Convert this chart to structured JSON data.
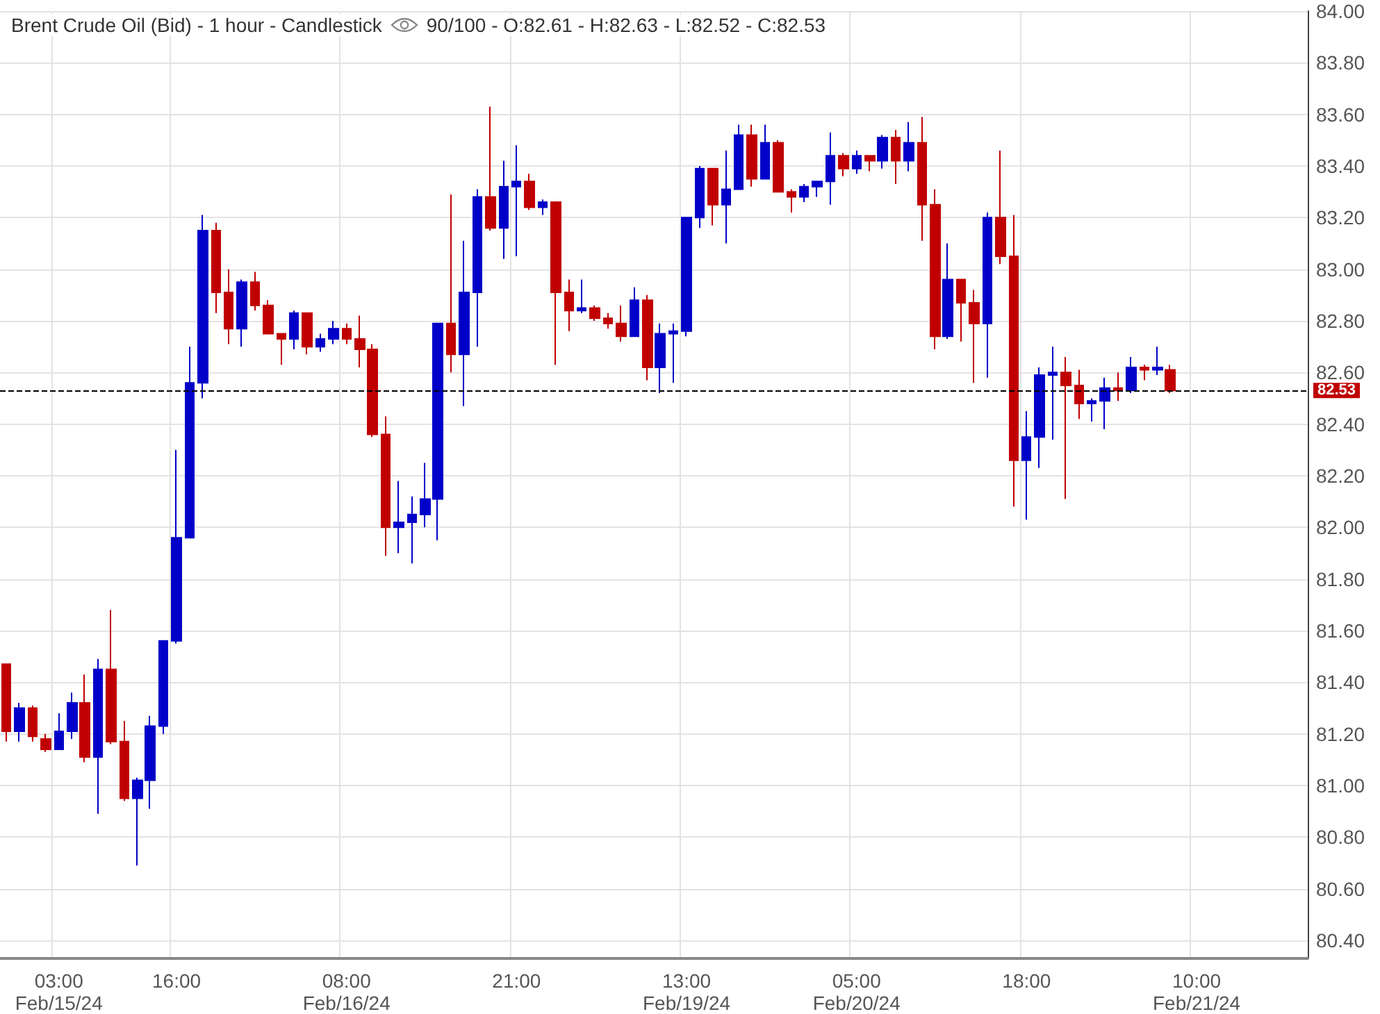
{
  "chart_data": {
    "type": "candlestick",
    "title": "Brent Crude Oil (Bid) - 1 hour - Candlestick",
    "annotations": [
      "90/100 - O:82.61 - H:82.63 - L:82.52 - C:82.53"
    ],
    "categories": [
      null,
      null,
      null,
      null,
      "03:00\nFeb/15/24",
      null,
      null,
      null,
      null,
      null,
      null,
      null,
      null,
      "16:00",
      null,
      null,
      null,
      null,
      null,
      null,
      null,
      null,
      null,
      null,
      null,
      null,
      "08:00\nFeb/16/24",
      null,
      null,
      null,
      null,
      null,
      null,
      null,
      null,
      null,
      null,
      null,
      null,
      "21:00",
      null,
      null,
      null,
      null,
      null,
      null,
      null,
      null,
      null,
      null,
      null,
      null,
      "13:00\nFeb/19/24",
      null,
      null,
      null,
      null,
      null,
      null,
      null,
      null,
      null,
      null,
      null,
      null,
      "05:00\nFeb/20/24",
      null,
      null,
      null,
      null,
      null,
      null,
      null,
      null,
      null,
      null,
      null,
      null,
      "18:00",
      null,
      null,
      null,
      null,
      null,
      null,
      null,
      null,
      null,
      null,
      null,
      null,
      "10:00\nFeb/21/24",
      null,
      null,
      null,
      null,
      null,
      null,
      null,
      null
    ],
    "ohlc": [
      [
        81.47,
        81.47,
        81.17,
        81.21
      ],
      [
        81.21,
        81.32,
        81.17,
        81.3
      ],
      [
        81.3,
        81.31,
        81.17,
        81.19
      ],
      [
        81.18,
        81.2,
        81.13,
        81.14
      ],
      [
        81.14,
        81.28,
        81.14,
        81.21
      ],
      [
        81.21,
        81.36,
        81.18,
        81.32
      ],
      [
        81.32,
        81.43,
        81.09,
        81.11
      ],
      [
        81.11,
        81.49,
        80.89,
        81.45
      ],
      [
        81.45,
        81.68,
        81.16,
        81.17
      ],
      [
        81.17,
        81.25,
        80.94,
        80.95
      ],
      [
        80.95,
        81.03,
        80.69,
        81.02
      ],
      [
        81.02,
        81.27,
        80.91,
        81.23
      ],
      [
        81.23,
        81.56,
        81.2,
        81.56
      ],
      [
        81.56,
        82.3,
        81.55,
        81.96
      ],
      [
        81.96,
        82.7,
        81.96,
        82.56
      ],
      [
        82.56,
        83.21,
        82.5,
        83.15
      ],
      [
        83.15,
        83.18,
        82.83,
        82.91
      ],
      [
        82.91,
        83.0,
        82.71,
        82.77
      ],
      [
        82.77,
        82.96,
        82.7,
        82.95
      ],
      [
        82.95,
        82.99,
        82.84,
        82.86
      ],
      [
        82.86,
        82.88,
        82.75,
        82.75
      ],
      [
        82.75,
        82.75,
        82.63,
        82.73
      ],
      [
        82.73,
        82.84,
        82.69,
        82.83
      ],
      [
        82.83,
        82.83,
        82.67,
        82.7
      ],
      [
        82.7,
        82.75,
        82.68,
        82.73
      ],
      [
        82.73,
        82.8,
        82.71,
        82.77
      ],
      [
        82.77,
        82.79,
        82.71,
        82.73
      ],
      [
        82.73,
        82.82,
        82.62,
        82.69
      ],
      [
        82.69,
        82.71,
        82.35,
        82.36
      ],
      [
        82.36,
        82.43,
        81.89,
        82.0
      ],
      [
        82.0,
        82.18,
        81.9,
        82.02
      ],
      [
        82.02,
        82.12,
        81.86,
        82.05
      ],
      [
        82.05,
        82.25,
        82.0,
        82.11
      ],
      [
        82.11,
        82.79,
        81.95,
        82.79
      ],
      [
        82.79,
        83.29,
        82.6,
        82.67
      ],
      [
        82.67,
        83.11,
        82.47,
        82.91
      ],
      [
        82.91,
        83.31,
        82.7,
        83.28
      ],
      [
        83.28,
        83.63,
        83.15,
        83.16
      ],
      [
        83.16,
        83.42,
        83.04,
        83.32
      ],
      [
        83.32,
        83.48,
        83.05,
        83.34
      ],
      [
        83.34,
        83.37,
        83.23,
        83.24
      ],
      [
        83.24,
        83.27,
        83.21,
        83.26
      ],
      [
        83.26,
        83.26,
        82.63,
        82.91
      ],
      [
        82.91,
        82.96,
        82.76,
        82.84
      ],
      [
        82.84,
        82.96,
        82.83,
        82.85
      ],
      [
        82.85,
        82.86,
        82.8,
        82.81
      ],
      [
        82.81,
        82.83,
        82.77,
        82.79
      ],
      [
        82.79,
        82.86,
        82.72,
        82.74
      ],
      [
        82.74,
        82.93,
        82.74,
        82.88
      ],
      [
        82.88,
        82.9,
        82.57,
        82.62
      ],
      [
        82.62,
        82.79,
        82.52,
        82.75
      ],
      [
        82.75,
        82.79,
        82.56,
        82.76
      ],
      [
        82.76,
        83.2,
        82.74,
        83.2
      ],
      [
        83.2,
        83.4,
        83.16,
        83.39
      ],
      [
        83.39,
        83.39,
        83.17,
        83.25
      ],
      [
        83.25,
        83.46,
        83.1,
        83.31
      ],
      [
        83.31,
        83.56,
        83.31,
        83.52
      ],
      [
        83.52,
        83.56,
        83.32,
        83.35
      ],
      [
        83.35,
        83.56,
        83.35,
        83.49
      ],
      [
        83.49,
        83.5,
        83.3,
        83.3
      ],
      [
        83.3,
        83.31,
        83.22,
        83.28
      ],
      [
        83.28,
        83.33,
        83.26,
        83.32
      ],
      [
        83.32,
        83.34,
        83.28,
        83.34
      ],
      [
        83.34,
        83.53,
        83.25,
        83.44
      ],
      [
        83.44,
        83.45,
        83.36,
        83.39
      ],
      [
        83.39,
        83.46,
        83.37,
        83.44
      ],
      [
        83.44,
        83.44,
        83.38,
        83.42
      ],
      [
        83.42,
        83.52,
        83.39,
        83.51
      ],
      [
        83.51,
        83.54,
        83.33,
        83.42
      ],
      [
        83.42,
        83.57,
        83.38,
        83.49
      ],
      [
        83.49,
        83.59,
        83.11,
        83.25
      ],
      [
        83.25,
        83.31,
        82.69,
        82.74
      ],
      [
        82.74,
        83.1,
        82.73,
        82.96
      ],
      [
        82.96,
        82.96,
        82.72,
        82.87
      ],
      [
        82.87,
        82.92,
        82.56,
        82.79
      ],
      [
        82.79,
        83.22,
        82.58,
        83.2
      ],
      [
        83.2,
        83.46,
        83.02,
        83.05
      ],
      [
        83.05,
        83.21,
        82.08,
        82.26
      ],
      [
        82.26,
        82.45,
        82.03,
        82.35
      ],
      [
        82.35,
        82.62,
        82.23,
        82.59
      ],
      [
        82.59,
        82.7,
        82.34,
        82.6
      ],
      [
        82.6,
        82.66,
        82.11,
        82.55
      ],
      [
        82.55,
        82.61,
        82.42,
        82.48
      ],
      [
        82.48,
        82.5,
        82.41,
        82.49
      ],
      [
        82.49,
        82.58,
        82.38,
        82.54
      ],
      [
        82.54,
        82.6,
        82.49,
        82.53
      ],
      [
        82.53,
        82.66,
        82.52,
        82.62
      ],
      [
        82.62,
        82.63,
        82.57,
        82.61
      ],
      [
        82.61,
        82.7,
        82.59,
        82.62
      ],
      [
        82.61,
        82.63,
        82.52,
        82.53
      ],
      null,
      null,
      null,
      null,
      null,
      null,
      null,
      null,
      null,
      null
    ],
    "colors": [
      "#c00000",
      "#0000c8",
      "#c00000",
      "#c00000",
      "#0000c8",
      "#0000c8",
      "#c00000",
      "#0000c8",
      "#c00000",
      "#c00000",
      "#0000c8",
      "#0000c8",
      "#0000c8",
      "#0000c8",
      "#0000c8",
      "#0000c8",
      "#c00000",
      "#c00000",
      "#0000c8",
      "#c00000",
      "#c00000",
      "#c00000",
      "#0000c8",
      "#c00000",
      "#0000c8",
      "#0000c8",
      "#c00000",
      "#c00000",
      "#c00000",
      "#c00000",
      "#0000c8",
      "#0000c8",
      "#0000c8",
      "#0000c8",
      "#c00000",
      "#0000c8",
      "#0000c8",
      "#c00000",
      "#0000c8",
      "#0000c8",
      "#c00000",
      "#0000c8",
      "#c00000",
      "#c00000",
      "#0000c8",
      "#c00000",
      "#c00000",
      "#c00000",
      "#0000c8",
      "#c00000",
      "#0000c8",
      "#0000c8",
      "#0000c8",
      "#0000c8",
      "#c00000",
      "#0000c8",
      "#0000c8",
      "#c00000",
      "#0000c8",
      "#c00000",
      "#c00000",
      "#0000c8",
      "#0000c8",
      "#0000c8",
      "#c00000",
      "#0000c8",
      "#c00000",
      "#0000c8",
      "#c00000",
      "#0000c8",
      "#c00000",
      "#c00000",
      "#0000c8",
      "#c00000",
      "#c00000",
      "#0000c8",
      "#c00000",
      "#c00000",
      "#0000c8",
      "#0000c8",
      "#0000c8",
      "#c00000",
      "#c00000",
      "#0000c8",
      "#0000c8",
      "#c00000",
      "#0000c8",
      "#c00000",
      "#0000c8",
      "#c00000",
      null,
      null,
      null,
      null,
      null,
      null,
      null,
      null,
      null,
      null
    ],
    "ylim": [
      80.33,
      84.0
    ],
    "yticks": [
      {
        "value": 80.4,
        "label": "80.40"
      },
      {
        "value": 80.6,
        "label": "80.60"
      },
      {
        "value": 80.8,
        "label": "80.80"
      },
      {
        "value": 81.0,
        "label": "81.00"
      },
      {
        "value": 81.2,
        "label": "81.20"
      },
      {
        "value": 81.4,
        "label": "81.40"
      },
      {
        "value": 81.6,
        "label": "81.60"
      },
      {
        "value": 81.8,
        "label": "81.80"
      },
      {
        "value": 82.0,
        "label": "82.00"
      },
      {
        "value": 82.2,
        "label": "82.20"
      },
      {
        "value": 82.4,
        "label": "82.40"
      },
      {
        "value": 82.6,
        "label": "82.60"
      },
      {
        "value": 82.8,
        "label": "82.80"
      },
      {
        "value": 83.0,
        "label": "83.00"
      },
      {
        "value": 83.2,
        "label": "83.20"
      },
      {
        "value": 83.4,
        "label": "83.40"
      },
      {
        "value": 83.6,
        "label": "83.60"
      },
      {
        "value": 83.8,
        "label": "83.80"
      },
      {
        "value": 84.0,
        "label": "84.00"
      }
    ],
    "ref_lines": [
      {
        "axis": "y",
        "value": 82.53,
        "label": "82.53",
        "color": "#000000",
        "line_style": "dashed"
      }
    ],
    "grid": true
  }
}
